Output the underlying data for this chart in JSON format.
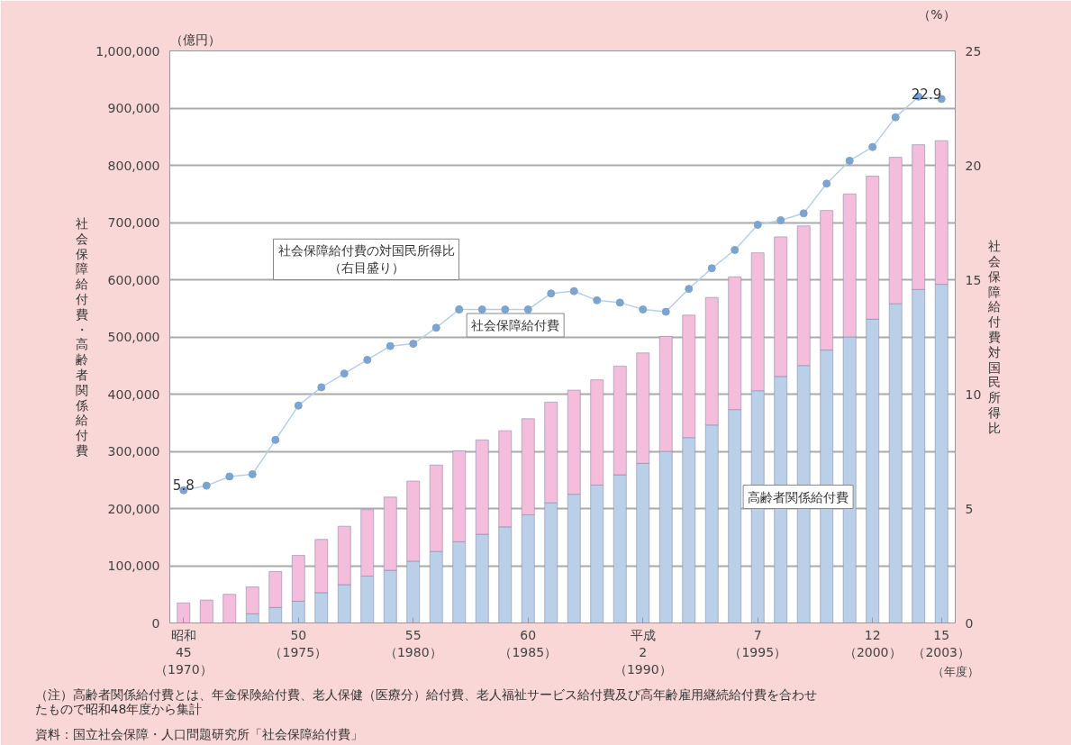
{
  "chart_data": {
    "type": "bar",
    "stacked": true,
    "categories": [
      "昭和\n45\n（1970）",
      null,
      null,
      null,
      null,
      "50\n（1975）",
      null,
      null,
      null,
      null,
      "55\n（1980）",
      null,
      null,
      null,
      null,
      "60\n（1985）",
      null,
      null,
      null,
      null,
      "平成\n2\n（1990）",
      null,
      null,
      null,
      null,
      "7\n（1995）",
      null,
      null,
      null,
      null,
      "12\n（2000）",
      null,
      null,
      "15\n（2003）"
    ],
    "xlabel": "（年度）",
    "ylabel": "社会保障給付費・高齢者関係給付費",
    "y2label": "社会保障給付費対国民所得比",
    "series": [
      {
        "name": "高齢者関係給付費",
        "color": "#b9d0e8",
        "values": [
          null,
          null,
          null,
          16000,
          27000,
          38000,
          53000,
          67000,
          82000,
          92000,
          108000,
          125000,
          142000,
          155000,
          168000,
          189000,
          210000,
          225000,
          241000,
          259000,
          279000,
          300000,
          324000,
          346000,
          373000,
          406000,
          431000,
          450000,
          477000,
          500000,
          531000,
          558000,
          583000,
          592000
        ]
      },
      {
        "color": "#f5bddc",
        "values": [
          35000,
          40000,
          50000,
          47000,
          63000,
          80000,
          93000,
          102000,
          116000,
          128000,
          140000,
          151000,
          159000,
          165000,
          168000,
          168000,
          176000,
          182000,
          184000,
          190000,
          193000,
          201000,
          214000,
          223000,
          232000,
          241000,
          244000,
          244000,
          244000,
          250000,
          250000,
          256000,
          253000,
          251000
        ]
      },
      {
        "name": "社会保障給付費の対国民所得比（右目盛り）",
        "type": "line",
        "axis": "y2",
        "color": "#7ba4d0",
        "marker": "circle",
        "line_style": "solid",
        "values": [
          5.8,
          6.0,
          6.4,
          6.5,
          8.0,
          9.5,
          10.3,
          10.9,
          11.5,
          12.1,
          12.2,
          12.9,
          13.7,
          13.7,
          13.7,
          13.7,
          14.4,
          14.5,
          14.1,
          14.0,
          13.7,
          13.6,
          14.6,
          15.5,
          16.3,
          17.4,
          17.6,
          17.9,
          19.2,
          20.2,
          20.8,
          22.1,
          23.0,
          22.9
        ],
        "value_labels": [
          "5.8",
          null,
          null,
          null,
          null,
          null,
          null,
          null,
          null,
          null,
          null,
          null,
          null,
          null,
          null,
          null,
          null,
          null,
          null,
          null,
          null,
          null,
          null,
          null,
          null,
          null,
          null,
          null,
          null,
          null,
          null,
          null,
          null,
          "22.9"
        ]
      }
    ],
    "ylim": [
      0,
      1000000
    ],
    "yticks": [
      0,
      {
        "value": 100000,
        "label": "100,000"
      },
      {
        "value": 200000,
        "label": "200,000"
      },
      {
        "value": 300000,
        "label": "300,000"
      },
      {
        "value": 400000,
        "label": "400,000"
      },
      {
        "value": 500000,
        "label": "500,000"
      },
      {
        "value": 600000,
        "label": "600,000"
      },
      {
        "value": 700000,
        "label": "700,000"
      },
      {
        "value": 800000,
        "label": "800,000"
      },
      {
        "value": 900000,
        "label": "900,000"
      },
      {
        "value": 1000000,
        "label": "1,000,000"
      }
    ],
    "y2lim": [
      0,
      25
    ],
    "y2ticks": [
      0,
      5,
      10,
      15,
      20,
      25
    ],
    "grid": "y",
    "annotations": [
      "（億円）",
      "（%）",
      "社会保障給付費",
      "資料：国立社会保障・人口問題研究所「社会保障給付費」",
      "（注）高齢者関係給付費とは、年金保険給付費、老人保健（医療分）給付費、老人福祉サービス給付費及び高年齢雇用継続給付費を合わせたもので昭和48年度から集計"
    ]
  }
}
